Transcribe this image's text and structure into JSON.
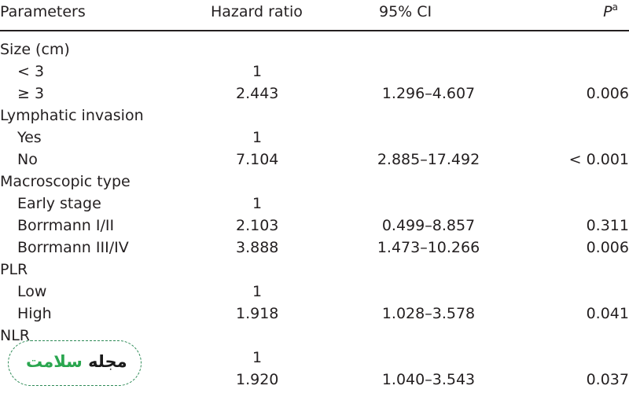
{
  "header": {
    "parameters": "Parameters",
    "hazard_ratio": "Hazard ratio",
    "ci": "95% CI",
    "p": "P",
    "p_sup": "a"
  },
  "rows": [
    {
      "param": "Size (cm)",
      "sub": false,
      "hr": "",
      "ci": "",
      "p": ""
    },
    {
      "param": "< 3",
      "sub": true,
      "hr": "1",
      "ci": "",
      "p": ""
    },
    {
      "param": "≥ 3",
      "sub": true,
      "hr": "2.443",
      "ci": "1.296–4.607",
      "p": "0.006"
    },
    {
      "param": "Lymphatic invasion",
      "sub": false,
      "hr": "",
      "ci": "",
      "p": ""
    },
    {
      "param": "Yes",
      "sub": true,
      "hr": "1",
      "ci": "",
      "p": ""
    },
    {
      "param": "No",
      "sub": true,
      "hr": "7.104",
      "ci": "2.885–17.492",
      "p": "< 0.001"
    },
    {
      "param": "Macroscopic type",
      "sub": false,
      "hr": "",
      "ci": "",
      "p": ""
    },
    {
      "param": "Early stage",
      "sub": true,
      "hr": "1",
      "ci": "",
      "p": ""
    },
    {
      "param": "Borrmann I/II",
      "sub": true,
      "hr": "2.103",
      "ci": "0.499–8.857",
      "p": "0.311"
    },
    {
      "param": "Borrmann III/IV",
      "sub": true,
      "hr": "3.888",
      "ci": "1.473–10.266",
      "p": "0.006"
    },
    {
      "param": "PLR",
      "sub": false,
      "hr": "",
      "ci": "",
      "p": ""
    },
    {
      "param": "Low",
      "sub": true,
      "hr": "1",
      "ci": "",
      "p": ""
    },
    {
      "param": "High",
      "sub": true,
      "hr": "1.918",
      "ci": "1.028–3.578",
      "p": "0.041"
    },
    {
      "param": "NLR",
      "sub": false,
      "hr": "",
      "ci": "",
      "p": ""
    },
    {
      "param": "",
      "sub": true,
      "hr": "1",
      "ci": "",
      "p": ""
    },
    {
      "param": "",
      "sub": true,
      "hr": "1.920",
      "ci": "1.040–3.543",
      "p": "0.037"
    }
  ],
  "watermark": {
    "word1": "سلامت",
    "word2": "مجله",
    "color": "#2aa64f"
  }
}
